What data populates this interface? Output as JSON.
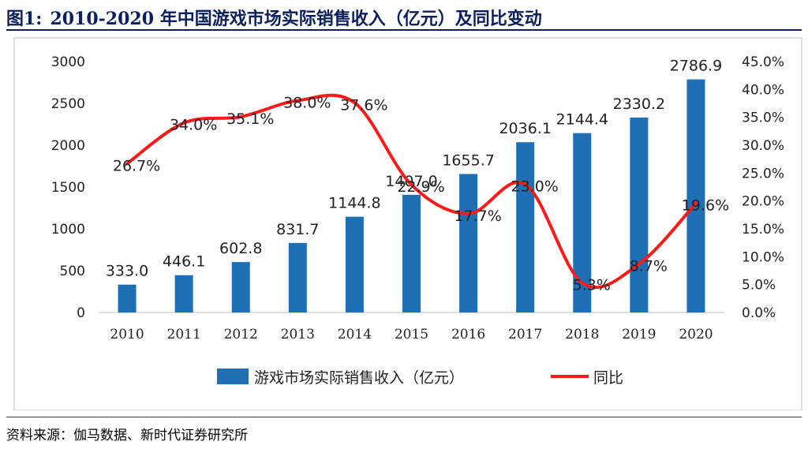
{
  "figure": {
    "number": "图1:",
    "title": "2010-2020 年中国游戏市场实际销售收入（亿元）及同比变动",
    "source": "资料来源：伽马数据、新时代证券研究所"
  },
  "chart_data": {
    "type": "bar+line",
    "categories": [
      "2010",
      "2011",
      "2012",
      "2013",
      "2014",
      "2015",
      "2016",
      "2017",
      "2018",
      "2019",
      "2020"
    ],
    "series": [
      {
        "name": "游戏市场实际销售收入（亿元）",
        "type": "bar",
        "axis": "left",
        "color": "#1f6fb5",
        "values": [
          333.0,
          446.1,
          602.8,
          831.7,
          1144.8,
          1407.0,
          1655.7,
          2036.1,
          2144.4,
          2330.2,
          2786.9
        ],
        "labels": [
          "333.0",
          "446.1",
          "602.8",
          "831.7",
          "1144.8",
          "1407.0",
          "1655.7",
          "2036.1",
          "2144.4",
          "2330.2",
          "2786.9"
        ]
      },
      {
        "name": "同比",
        "type": "line",
        "axis": "right",
        "color": "#ff1a1a",
        "values": [
          26.7,
          34.0,
          35.1,
          38.0,
          37.6,
          22.9,
          17.7,
          23.0,
          5.3,
          8.7,
          19.6
        ],
        "labels": [
          "26.7%",
          "34.0%",
          "35.1%",
          "38.0%",
          "37.6%",
          "22.9%",
          "17.7%",
          "23.0%",
          "5.3%",
          "8.7%",
          "19.6%"
        ]
      }
    ],
    "y_left": {
      "min": 0,
      "max": 3000,
      "ticks": [
        "0",
        "500",
        "1000",
        "1500",
        "2000",
        "2500",
        "3000"
      ]
    },
    "y_right": {
      "min": 0,
      "max": 45,
      "ticks": [
        "0.0%",
        "5.0%",
        "10.0%",
        "15.0%",
        "20.0%",
        "25.0%",
        "30.0%",
        "35.0%",
        "40.0%",
        "45.0%"
      ]
    },
    "grid": false,
    "legend": "bottom-center"
  }
}
